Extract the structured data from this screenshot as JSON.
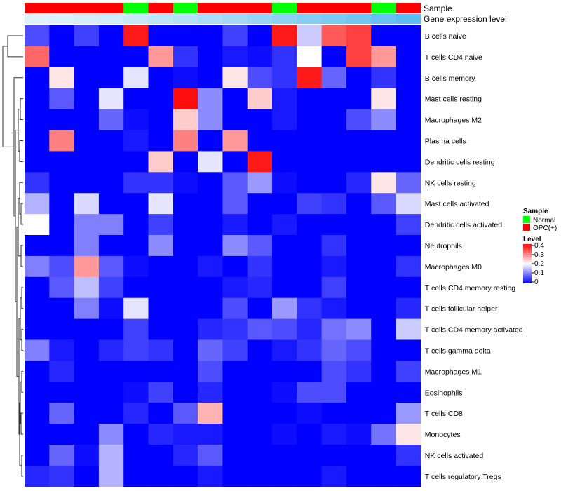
{
  "chart_data": {
    "type": "heatmap",
    "annotations": [
      {
        "name": "Sample",
        "values": [
          "OPC(+)",
          "OPC(+)",
          "OPC(+)",
          "OPC(+)",
          "Normal",
          "OPC(+)",
          "Normal",
          "OPC(+)",
          "OPC(+)",
          "OPC(+)",
          "Normal",
          "OPC(+)",
          "OPC(+)",
          "OPC(+)",
          "Normal",
          "OPC(+)"
        ]
      },
      {
        "name": "Gene expression level",
        "values": [
          0.0,
          0.02,
          0.04,
          0.06,
          0.1,
          0.14,
          0.18,
          0.22,
          0.26,
          0.3,
          0.34,
          0.38,
          0.42,
          0.46,
          0.5,
          0.55
        ]
      }
    ],
    "sample_colors": {
      "Normal": "#00ff00",
      "OPC(+)": "#ff0000"
    },
    "rows": [
      "B cells naive",
      "T cells CD4 naive",
      "B cells memory",
      "Mast cells resting",
      "Macrophages M2",
      "Plasma cells",
      "Dendritic cells resting",
      "NK cells resting",
      "Mast cells activated",
      "Dendritic cells activated",
      "Neutrophils",
      "Macrophages M0",
      "T cells CD4 memory resting",
      "T cells follicular helper",
      "T cells CD4 memory activated",
      "T cells gamma delta",
      "Macrophages M1",
      "Eosinophils",
      "T cells CD8",
      "Monocytes",
      "NK cells activated",
      "T cells regulatory  Tregs"
    ],
    "values": [
      [
        0.06,
        0,
        0.05,
        0,
        0.38,
        0,
        0,
        0,
        0.05,
        0,
        0.38,
        0.16,
        0.33,
        0.35,
        0,
        0
      ],
      [
        0.32,
        0,
        0,
        0,
        0,
        0.28,
        0.04,
        0,
        0.02,
        0.01,
        0.04,
        0.2,
        0,
        0.35,
        0.28,
        0
      ],
      [
        0,
        0.22,
        0,
        0,
        0.18,
        0,
        0.01,
        0,
        0.22,
        0.06,
        0.04,
        0.38,
        0.08,
        0,
        0.04,
        0
      ],
      [
        0,
        0.07,
        0,
        0.18,
        0,
        0,
        0.39,
        0.11,
        0,
        0.24,
        0.02,
        0,
        0,
        0,
        0.22,
        0
      ],
      [
        0,
        0,
        0,
        0.08,
        0.01,
        0,
        0.24,
        0.11,
        0,
        0,
        0.02,
        0,
        0,
        0.06,
        0.11,
        0
      ],
      [
        0,
        0.3,
        0,
        0,
        0.02,
        0,
        0.3,
        0,
        0.28,
        0,
        0,
        0,
        0,
        0,
        0,
        0
      ],
      [
        0,
        0,
        0,
        0,
        0,
        0.24,
        0,
        0.18,
        0,
        0.38,
        0,
        0,
        0,
        0,
        0,
        0
      ],
      [
        0.04,
        0,
        0,
        0,
        0.04,
        0.04,
        0.01,
        0,
        0.07,
        0.12,
        0.01,
        0,
        0,
        0.03,
        0.22,
        0.08
      ],
      [
        0.14,
        0,
        0.17,
        0,
        0,
        0.18,
        0,
        0,
        0.07,
        0,
        0,
        0.05,
        0.04,
        0,
        0.07,
        0.17
      ],
      [
        0.2,
        0,
        0.1,
        0.1,
        0,
        0.05,
        0,
        0,
        0.02,
        0,
        0.02,
        0,
        0,
        0,
        0,
        0.05
      ],
      [
        0,
        0,
        0.1,
        0,
        0,
        0.11,
        0,
        0,
        0.11,
        0.07,
        0,
        0,
        0.04,
        0,
        0,
        0
      ],
      [
        0.1,
        0.06,
        0.28,
        0.07,
        0.01,
        0,
        0,
        0.02,
        0,
        0.04,
        0,
        0,
        0.02,
        0,
        0,
        0.04
      ],
      [
        0,
        0.07,
        0.15,
        0.05,
        0,
        0,
        0,
        0,
        0.02,
        0.03,
        0,
        0,
        0.05,
        0,
        0,
        0
      ],
      [
        0,
        0,
        0.1,
        0.01,
        0.18,
        0,
        0,
        0,
        0.06,
        0,
        0.12,
        0.04,
        0.02,
        0,
        0,
        0.03
      ],
      [
        0,
        0,
        0,
        0,
        0.05,
        0,
        0,
        0.03,
        0.04,
        0.07,
        0.06,
        0.03,
        0.09,
        0.11,
        0,
        0.16
      ],
      [
        0.1,
        0.02,
        0,
        0.03,
        0.05,
        0.04,
        0,
        0.08,
        0.05,
        0,
        0.02,
        0.04,
        0.08,
        0.06,
        0,
        0
      ],
      [
        0,
        0.03,
        0,
        0,
        0,
        0,
        0,
        0.06,
        0,
        0,
        0,
        0,
        0.06,
        0.04,
        0,
        0.05
      ],
      [
        0,
        0,
        0,
        0,
        0.01,
        0.05,
        0,
        0.03,
        0,
        0,
        0.01,
        0.06,
        0.06,
        0,
        0,
        0
      ],
      [
        0,
        0.08,
        0,
        0,
        0.03,
        0,
        0.07,
        0.26,
        0,
        0,
        0,
        0.01,
        0,
        0,
        0,
        0.12
      ],
      [
        0,
        0,
        0,
        0.11,
        0,
        0.03,
        0.02,
        0.02,
        0,
        0,
        0.01,
        0,
        0.02,
        0.01,
        0.09,
        0.22
      ],
      [
        0,
        0.08,
        0.01,
        0.14,
        0,
        0,
        0.03,
        0.07,
        0,
        0,
        0,
        0,
        0,
        0,
        0,
        0.04
      ],
      [
        0.03,
        0.04,
        0,
        0.14,
        0,
        0,
        0,
        0.02,
        0,
        0,
        0,
        0,
        0.02,
        0,
        0,
        0
      ]
    ],
    "annotation_labels": {
      "sample": "Sample",
      "expression": "Gene expression level"
    },
    "legend": {
      "sample_title": "Sample",
      "sample_items": [
        {
          "label": "Normal",
          "color": "#00ff00"
        },
        {
          "label": "OPC(+)",
          "color": "#ff0000"
        }
      ],
      "level_title": "Level",
      "level_ticks": [
        "0.4",
        "0.3",
        "0.2",
        "0.1",
        "0"
      ],
      "level_range": [
        0,
        0.4
      ],
      "placement": "right"
    },
    "colors": {
      "low": "#0000ff",
      "mid": "#ffffff",
      "high": "#ff0000",
      "expr_low": "#dff2fb",
      "expr_high": "#5bbdf0"
    }
  }
}
